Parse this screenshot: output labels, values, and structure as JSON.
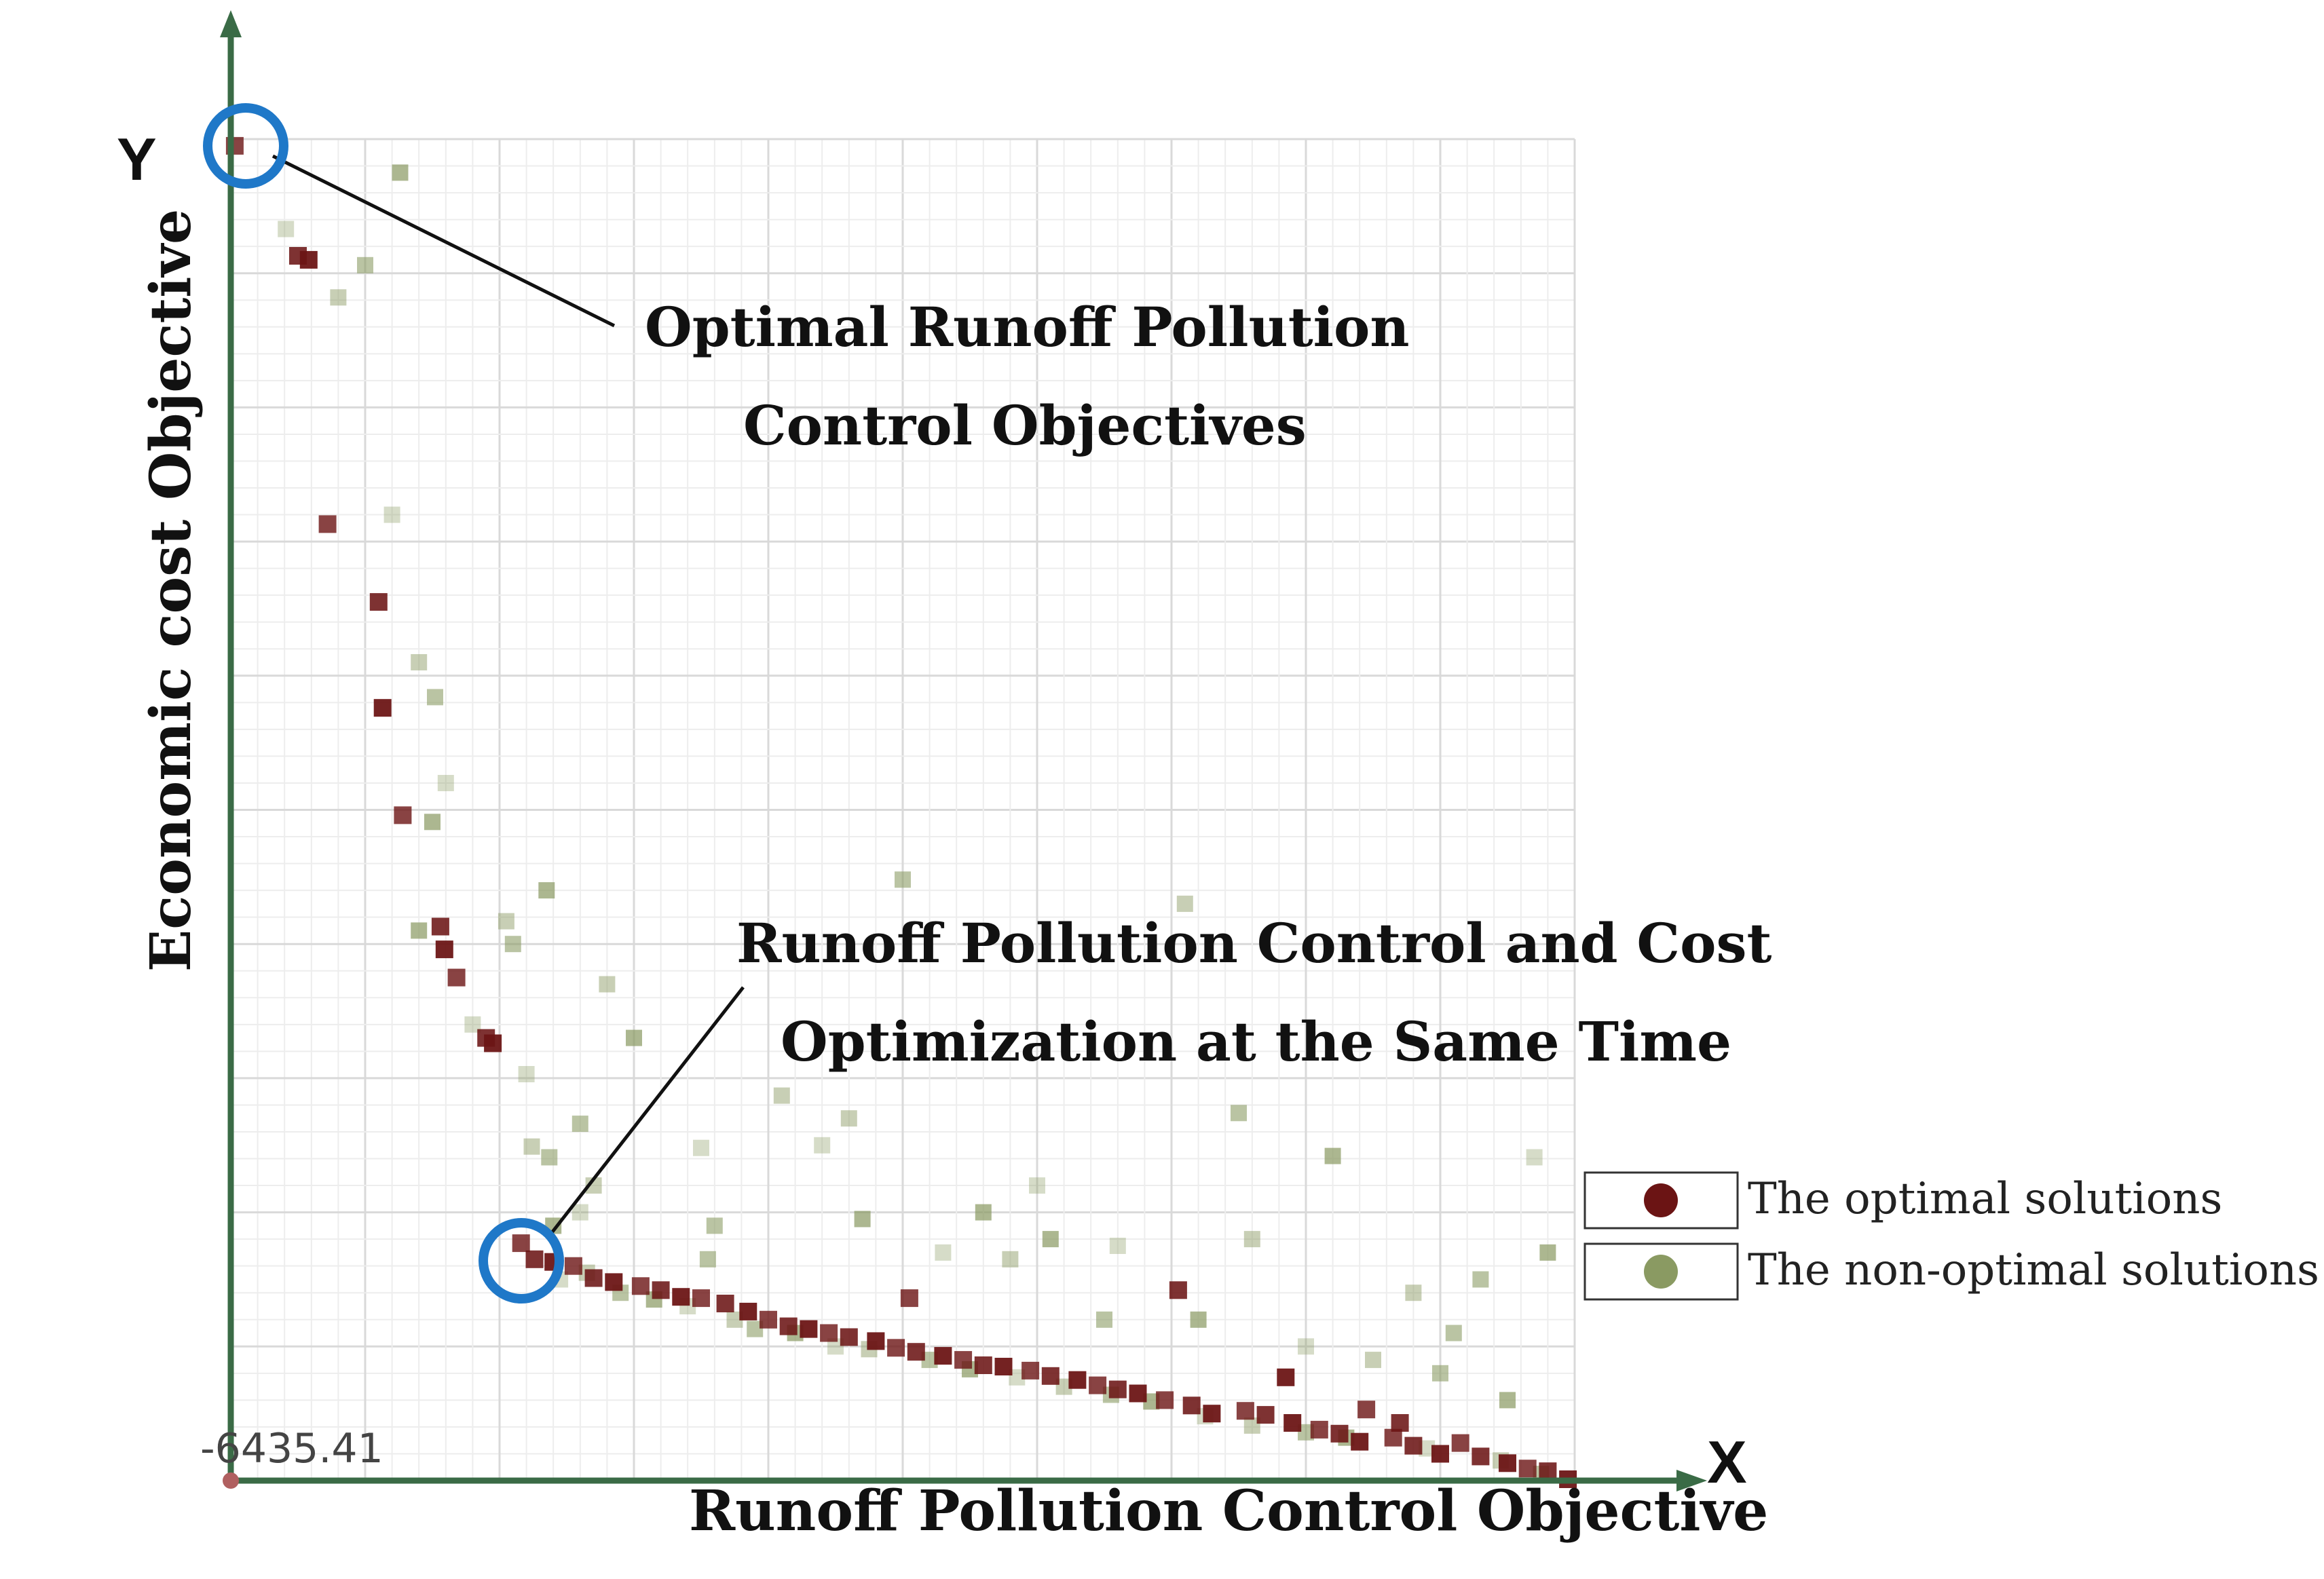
{
  "chart_data": {
    "type": "scatter",
    "title": "",
    "xlabel": "Runoff Pollution Control Objective",
    "ylabel": "Economic cost Objective",
    "x_axis_letter": "X",
    "y_axis_letter": "Y",
    "origin_tick_label": "-6435.41",
    "xlim": [
      0,
      100
    ],
    "ylim": [
      0,
      100
    ],
    "grid": true,
    "legend_position": "right",
    "colors": {
      "axis": "#3a6b46",
      "grid_major": "#d9d9d9",
      "grid_minor": "#ededed",
      "optimal": "#6b1414",
      "non_optimal": "#8a9a62",
      "highlight_circle": "#1f78c8",
      "annotation_line": "#111111"
    },
    "legend": [
      {
        "label": "The optimal solutions",
        "color": "#6b1414",
        "icon": "circle-marker"
      },
      {
        "label": "The non-optimal solutions",
        "color": "#8a9a62",
        "icon": "circle-marker"
      }
    ],
    "annotations": [
      {
        "lines": [
          "Optimal Runoff Pollution",
          "Control Objectives"
        ],
        "point": [
          0.5,
          99.5
        ]
      },
      {
        "lines": [
          "Runoff Pollution Control and Cost",
          "Optimization at the Same Time"
        ],
        "point": [
          21.7,
          17.7
        ]
      }
    ],
    "series": [
      {
        "name": "The optimal solutions",
        "color": "#6b1414",
        "points": [
          [
            0.3,
            99.5
          ],
          [
            5.0,
            91.3
          ],
          [
            5.8,
            91.0
          ],
          [
            7.2,
            71.3
          ],
          [
            11.0,
            65.5
          ],
          [
            11.3,
            57.6
          ],
          [
            12.8,
            49.6
          ],
          [
            15.6,
            41.3
          ],
          [
            15.9,
            39.6
          ],
          [
            16.8,
            37.5
          ],
          [
            19.0,
            33.0
          ],
          [
            19.5,
            32.6
          ],
          [
            21.6,
            17.7
          ],
          [
            22.6,
            16.5
          ],
          [
            24.0,
            16.3
          ],
          [
            25.5,
            16.0
          ],
          [
            27.0,
            15.1
          ],
          [
            28.5,
            14.8
          ],
          [
            30.5,
            14.5
          ],
          [
            32.0,
            14.2
          ],
          [
            33.5,
            13.7
          ],
          [
            35.0,
            13.6
          ],
          [
            36.8,
            13.2
          ],
          [
            38.5,
            12.6
          ],
          [
            40.0,
            12.0
          ],
          [
            41.5,
            11.5
          ],
          [
            43.0,
            11.3
          ],
          [
            44.5,
            11.0
          ],
          [
            46.0,
            10.7
          ],
          [
            48.0,
            10.4
          ],
          [
            49.5,
            9.9
          ],
          [
            51.0,
            9.6
          ],
          [
            53.0,
            9.3
          ],
          [
            54.5,
            9.0
          ],
          [
            56.0,
            8.6
          ],
          [
            57.5,
            8.5
          ],
          [
            59.5,
            8.2
          ],
          [
            61.0,
            7.8
          ],
          [
            63.0,
            7.5
          ],
          [
            64.5,
            7.1
          ],
          [
            66.0,
            6.8
          ],
          [
            67.5,
            6.5
          ],
          [
            69.5,
            6.0
          ],
          [
            71.5,
            5.6
          ],
          [
            73.0,
            5.0
          ],
          [
            75.5,
            5.2
          ],
          [
            77.0,
            4.9
          ],
          [
            79.0,
            4.3
          ],
          [
            81.0,
            3.8
          ],
          [
            82.5,
            3.5
          ],
          [
            84.0,
            2.9
          ],
          [
            86.5,
            3.2
          ],
          [
            88.0,
            2.6
          ],
          [
            90.0,
            2.0
          ],
          [
            91.5,
            2.8
          ],
          [
            93.0,
            1.8
          ],
          [
            95.0,
            1.3
          ],
          [
            96.5,
            0.9
          ],
          [
            98.0,
            0.7
          ],
          [
            99.5,
            0.1
          ],
          [
            50.5,
            13.6
          ],
          [
            70.5,
            14.2
          ],
          [
            78.5,
            7.7
          ],
          [
            84.5,
            5.3
          ],
          [
            87.0,
            4.3
          ]
        ]
      },
      {
        "name": "The non-optimal solutions",
        "color": "#8a9a62",
        "points": [
          [
            4.1,
            93.3
          ],
          [
            8.0,
            88.2
          ],
          [
            10.0,
            90.6
          ],
          [
            12.6,
            97.5
          ],
          [
            12.0,
            72.0
          ],
          [
            14.0,
            61.0
          ],
          [
            15.2,
            58.4
          ],
          [
            15.0,
            49.1
          ],
          [
            16.0,
            52.0
          ],
          [
            20.5,
            41.7
          ],
          [
            21.0,
            40.0
          ],
          [
            23.5,
            44.0
          ],
          [
            22.0,
            30.3
          ],
          [
            22.4,
            24.9
          ],
          [
            23.7,
            24.1
          ],
          [
            14.0,
            41.0
          ],
          [
            18.0,
            34.0
          ],
          [
            28.0,
            37.0
          ],
          [
            26.0,
            26.6
          ],
          [
            30.0,
            33.0
          ],
          [
            35.0,
            24.8
          ],
          [
            41.0,
            28.7
          ],
          [
            50.0,
            44.8
          ],
          [
            56.0,
            20.0
          ],
          [
            60.0,
            22.0
          ],
          [
            71.0,
            43.0
          ],
          [
            75.0,
            27.4
          ],
          [
            82.0,
            24.2
          ],
          [
            97.0,
            24.1
          ],
          [
            88.0,
            14.0
          ],
          [
            93.0,
            15.0
          ],
          [
            98.0,
            17.0
          ],
          [
            44.0,
            25.0
          ],
          [
            46.0,
            27.0
          ],
          [
            36.0,
            19.0
          ],
          [
            47.0,
            19.5
          ],
          [
            53.0,
            17.0
          ],
          [
            58.0,
            16.5
          ],
          [
            65.0,
            12.0
          ],
          [
            72.0,
            12.0
          ],
          [
            80.0,
            10.0
          ],
          [
            85.0,
            9.0
          ],
          [
            90.0,
            8.0
          ],
          [
            95.0,
            6.0
          ],
          [
            24.5,
            15.0
          ],
          [
            26.5,
            15.5
          ],
          [
            29.0,
            14.0
          ],
          [
            31.5,
            13.5
          ],
          [
            34.0,
            13.0
          ],
          [
            37.5,
            12.0
          ],
          [
            39.0,
            11.3
          ],
          [
            42.0,
            11.0
          ],
          [
            45.0,
            10.0
          ],
          [
            47.5,
            9.8
          ],
          [
            52.0,
            9.0
          ],
          [
            55.0,
            8.3
          ],
          [
            58.5,
            7.7
          ],
          [
            62.0,
            7.0
          ],
          [
            65.5,
            6.4
          ],
          [
            68.5,
            5.9
          ],
          [
            72.5,
            4.8
          ],
          [
            76.0,
            4.1
          ],
          [
            80.0,
            3.6
          ],
          [
            83.0,
            3.2
          ],
          [
            89.0,
            2.4
          ],
          [
            94.5,
            1.5
          ],
          [
            97.5,
            0.5
          ],
          [
            24.0,
            19.0
          ],
          [
            26.0,
            20.0
          ],
          [
            27.0,
            22.0
          ],
          [
            35.5,
            16.5
          ],
          [
            61.0,
            18.0
          ],
          [
            66.0,
            17.5
          ],
          [
            76.0,
            18.0
          ],
          [
            91.0,
            11.0
          ]
        ]
      }
    ]
  }
}
